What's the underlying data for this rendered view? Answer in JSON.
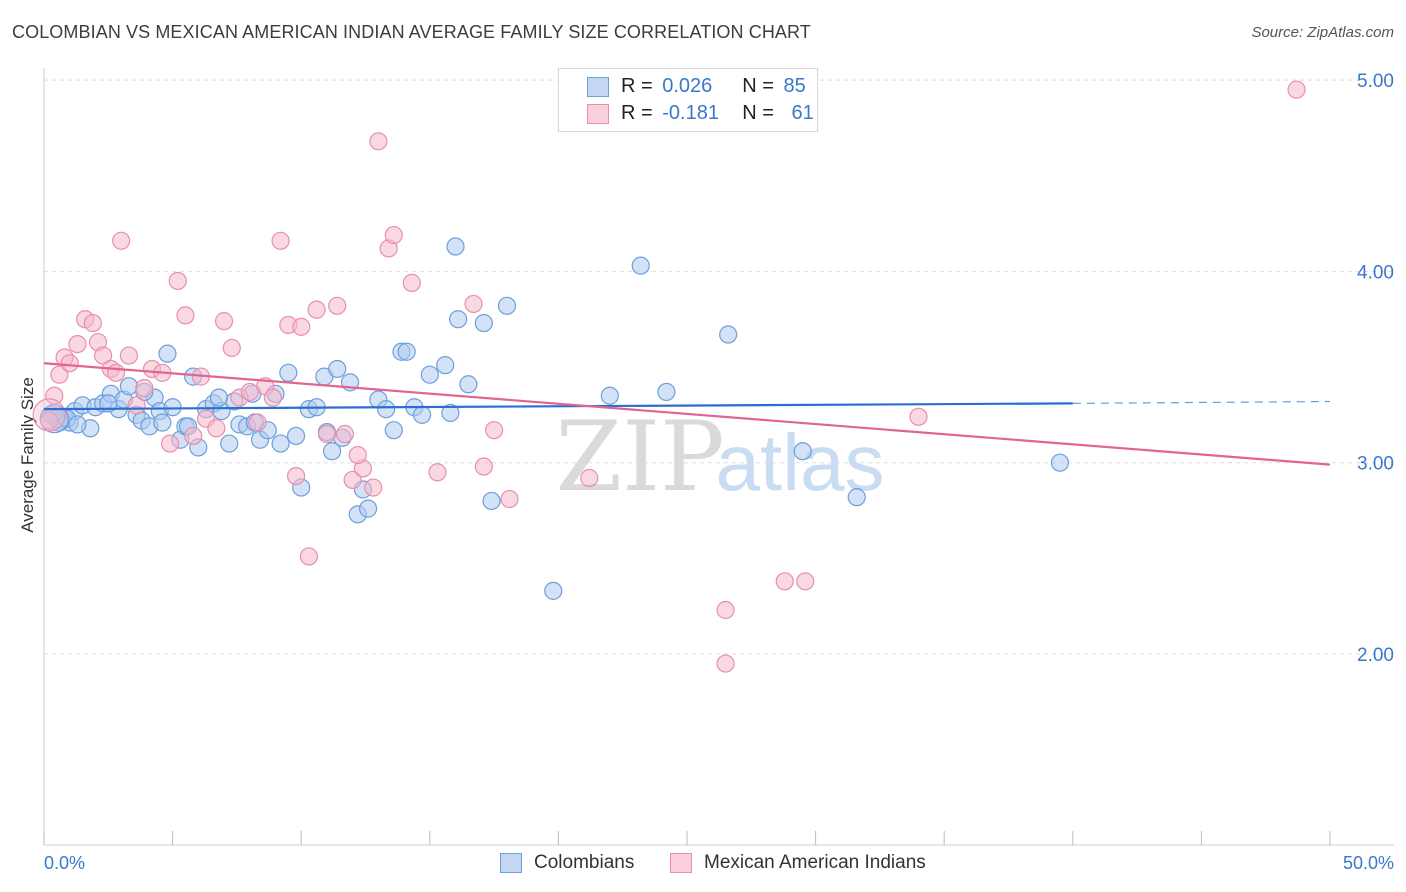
{
  "title": "COLOMBIAN VS MEXICAN AMERICAN INDIAN AVERAGE FAMILY SIZE CORRELATION CHART",
  "source": "Source: ZipAtlas.com",
  "watermark": {
    "zip": "ZIP",
    "atlas": "atlas"
  },
  "legend": {
    "r_label": "R =",
    "n_label": "N =",
    "rows": [
      {
        "r": "0.026",
        "n": "85"
      },
      {
        "r": "-0.181",
        "n": "61"
      }
    ]
  },
  "bottom_legend": {
    "colombians": "Colombians",
    "mexican": "Mexican American Indians"
  },
  "colors": {
    "blue_fill": "#aecbf0",
    "blue_stroke": "#6d9fdb",
    "blue_line": "#2a6fcf",
    "pink_fill": "#f5b8cb",
    "pink_stroke": "#e88fac",
    "pink_line": "#e0658f",
    "tick_text": "#3b78c9",
    "grid": "#dddddd"
  },
  "chart_data": {
    "type": "scatter",
    "title": "COLOMBIAN VS MEXICAN AMERICAN INDIAN AVERAGE FAMILY SIZE CORRELATION CHART",
    "xlabel": "",
    "ylabel": "Average Family Size",
    "xlim": [
      0,
      50
    ],
    "ylim": [
      1.0,
      5.2
    ],
    "x_tick_labels": [
      "0.0%",
      "50.0%"
    ],
    "y_ticks": [
      2.0,
      3.0,
      4.0,
      5.0
    ],
    "y_tick_labels": [
      "2.00",
      "3.00",
      "4.00",
      "5.00"
    ],
    "series": [
      {
        "name": "Colombians",
        "r": 0.026,
        "n": 85,
        "trend": {
          "x0": 0,
          "y0": 3.28,
          "x1": 40,
          "y1": 3.31,
          "dash_to_x": 50,
          "dash_y1": 3.32
        },
        "points": [
          [
            0.3,
            3.25
          ],
          [
            0.5,
            3.23
          ],
          [
            0.7,
            3.22
          ],
          [
            0.8,
            3.24
          ],
          [
            1.0,
            3.21
          ],
          [
            1.2,
            3.27
          ],
          [
            1.5,
            3.3
          ],
          [
            1.8,
            3.18
          ],
          [
            2.0,
            3.29
          ],
          [
            2.3,
            3.31
          ],
          [
            2.6,
            3.36
          ],
          [
            2.9,
            3.28
          ],
          [
            3.1,
            3.33
          ],
          [
            3.3,
            3.4
          ],
          [
            3.6,
            3.25
          ],
          [
            3.8,
            3.22
          ],
          [
            4.1,
            3.19
          ],
          [
            4.3,
            3.34
          ],
          [
            4.5,
            3.27
          ],
          [
            4.8,
            3.57
          ],
          [
            5.0,
            3.29
          ],
          [
            5.3,
            3.12
          ],
          [
            5.5,
            3.19
          ],
          [
            5.8,
            3.45
          ],
          [
            6.0,
            3.08
          ],
          [
            6.3,
            3.28
          ],
          [
            6.6,
            3.31
          ],
          [
            6.9,
            3.27
          ],
          [
            7.2,
            3.1
          ],
          [
            7.4,
            3.32
          ],
          [
            7.6,
            3.2
          ],
          [
            7.9,
            3.19
          ],
          [
            8.1,
            3.36
          ],
          [
            8.4,
            3.12
          ],
          [
            8.7,
            3.17
          ],
          [
            9.0,
            3.36
          ],
          [
            9.2,
            3.1
          ],
          [
            9.5,
            3.47
          ],
          [
            9.8,
            3.14
          ],
          [
            10.0,
            2.87
          ],
          [
            10.3,
            3.28
          ],
          [
            10.6,
            3.29
          ],
          [
            10.9,
            3.45
          ],
          [
            11.2,
            3.06
          ],
          [
            11.4,
            3.49
          ],
          [
            11.6,
            3.13
          ],
          [
            11.9,
            3.42
          ],
          [
            12.2,
            2.73
          ],
          [
            12.4,
            2.86
          ],
          [
            12.6,
            2.76
          ],
          [
            13.0,
            3.33
          ],
          [
            13.3,
            3.28
          ],
          [
            13.6,
            3.17
          ],
          [
            13.9,
            3.58
          ],
          [
            14.1,
            3.58
          ],
          [
            14.4,
            3.29
          ],
          [
            14.7,
            3.25
          ],
          [
            15.0,
            3.46
          ],
          [
            15.6,
            3.51
          ],
          [
            16.0,
            4.13
          ],
          [
            16.1,
            3.75
          ],
          [
            16.5,
            3.41
          ],
          [
            17.1,
            3.73
          ],
          [
            18.0,
            3.82
          ],
          [
            0.6,
            3.21
          ],
          [
            0.9,
            3.23
          ],
          [
            2.5,
            3.31
          ],
          [
            3.9,
            3.37
          ],
          [
            5.6,
            3.19
          ],
          [
            6.8,
            3.34
          ],
          [
            8.2,
            3.21
          ],
          [
            11.0,
            3.16
          ],
          [
            15.8,
            3.26
          ],
          [
            17.4,
            2.8
          ],
          [
            19.8,
            2.33
          ],
          [
            22.0,
            3.35
          ],
          [
            23.2,
            4.03
          ],
          [
            24.2,
            3.37
          ],
          [
            26.6,
            3.67
          ],
          [
            29.5,
            3.06
          ],
          [
            31.6,
            2.82
          ],
          [
            39.5,
            3.0
          ],
          [
            0.4,
            3.26
          ],
          [
            1.3,
            3.2
          ],
          [
            4.6,
            3.21
          ]
        ]
      },
      {
        "name": "Mexican American Indians",
        "r": -0.181,
        "n": 61,
        "trend": {
          "x0": 0,
          "y0": 3.52,
          "x1": 50,
          "y1": 2.99
        },
        "points": [
          [
            0.2,
            3.22
          ],
          [
            0.4,
            3.35
          ],
          [
            0.6,
            3.46
          ],
          [
            0.8,
            3.55
          ],
          [
            1.0,
            3.52
          ],
          [
            1.3,
            3.62
          ],
          [
            1.6,
            3.75
          ],
          [
            1.9,
            3.73
          ],
          [
            2.1,
            3.63
          ],
          [
            2.3,
            3.56
          ],
          [
            2.6,
            3.49
          ],
          [
            2.8,
            3.47
          ],
          [
            3.0,
            4.16
          ],
          [
            3.3,
            3.56
          ],
          [
            3.6,
            3.3
          ],
          [
            3.9,
            3.39
          ],
          [
            4.2,
            3.49
          ],
          [
            4.6,
            3.47
          ],
          [
            4.9,
            3.1
          ],
          [
            5.2,
            3.95
          ],
          [
            5.5,
            3.77
          ],
          [
            5.8,
            3.14
          ],
          [
            6.1,
            3.45
          ],
          [
            6.3,
            3.23
          ],
          [
            6.7,
            3.18
          ],
          [
            7.0,
            3.74
          ],
          [
            7.3,
            3.6
          ],
          [
            7.6,
            3.34
          ],
          [
            8.0,
            3.37
          ],
          [
            8.3,
            3.21
          ],
          [
            8.6,
            3.4
          ],
          [
            8.9,
            3.34
          ],
          [
            9.2,
            4.16
          ],
          [
            9.5,
            3.72
          ],
          [
            9.8,
            2.93
          ],
          [
            10.0,
            3.71
          ],
          [
            10.3,
            2.51
          ],
          [
            10.6,
            3.8
          ],
          [
            11.0,
            3.15
          ],
          [
            11.4,
            3.82
          ],
          [
            11.7,
            3.15
          ],
          [
            12.0,
            2.91
          ],
          [
            12.4,
            2.97
          ],
          [
            12.8,
            2.87
          ],
          [
            12.2,
            3.04
          ],
          [
            13.0,
            4.68
          ],
          [
            13.4,
            4.12
          ],
          [
            13.6,
            4.19
          ],
          [
            14.3,
            3.94
          ],
          [
            15.3,
            2.95
          ],
          [
            16.7,
            3.83
          ],
          [
            17.1,
            2.98
          ],
          [
            17.5,
            3.17
          ],
          [
            18.1,
            2.81
          ],
          [
            21.2,
            2.92
          ],
          [
            26.5,
            2.23
          ],
          [
            26.5,
            1.95
          ],
          [
            28.8,
            2.38
          ],
          [
            29.6,
            2.38
          ],
          [
            34.0,
            3.24
          ],
          [
            48.7,
            4.95
          ]
        ]
      }
    ]
  }
}
